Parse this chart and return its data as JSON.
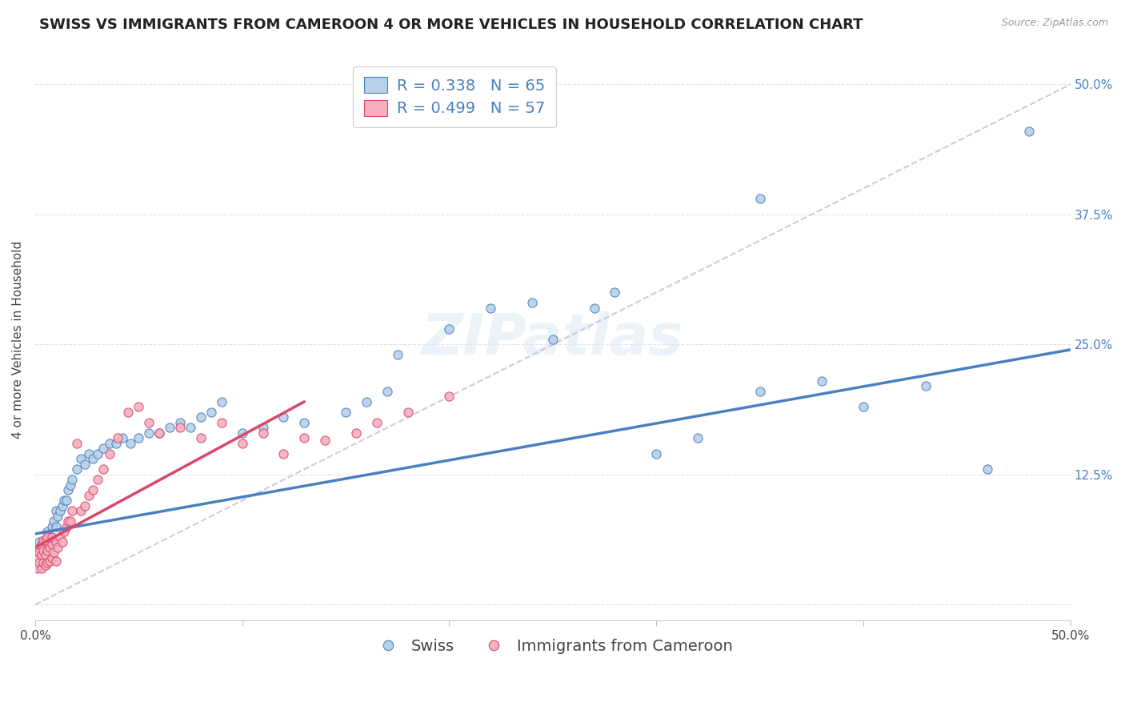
{
  "title": "SWISS VS IMMIGRANTS FROM CAMEROON 4 OR MORE VEHICLES IN HOUSEHOLD CORRELATION CHART",
  "source": "Source: ZipAtlas.com",
  "ylabel": "4 or more Vehicles in Household",
  "swiss_R": 0.338,
  "swiss_N": 65,
  "cam_R": 0.499,
  "cam_N": 57,
  "swiss_color": "#b8d0e8",
  "cam_color": "#f5b0c0",
  "swiss_line_color": "#4a80c0",
  "cam_line_color": "#d84868",
  "diag_color": "#c8cce0",
  "text_color": "#4a80c0",
  "background_color": "#ffffff",
  "xlim": [
    0.0,
    0.5
  ],
  "ylim": [
    -0.015,
    0.525
  ],
  "swiss_x": [
    0.001,
    0.002,
    0.003,
    0.004,
    0.005,
    0.005,
    0.006,
    0.006,
    0.007,
    0.008,
    0.008,
    0.009,
    0.01,
    0.01,
    0.011,
    0.012,
    0.013,
    0.014,
    0.015,
    0.016,
    0.017,
    0.018,
    0.02,
    0.022,
    0.024,
    0.026,
    0.028,
    0.03,
    0.033,
    0.036,
    0.039,
    0.042,
    0.046,
    0.05,
    0.055,
    0.06,
    0.065,
    0.07,
    0.075,
    0.08,
    0.085,
    0.09,
    0.1,
    0.11,
    0.12,
    0.13,
    0.15,
    0.16,
    0.17,
    0.2,
    0.22,
    0.25,
    0.27,
    0.3,
    0.32,
    0.35,
    0.38,
    0.4,
    0.43,
    0.46,
    0.175,
    0.24,
    0.28,
    0.35,
    0.48
  ],
  "swiss_y": [
    0.055,
    0.06,
    0.055,
    0.048,
    0.045,
    0.06,
    0.055,
    0.07,
    0.065,
    0.06,
    0.075,
    0.08,
    0.075,
    0.09,
    0.085,
    0.09,
    0.095,
    0.1,
    0.1,
    0.11,
    0.115,
    0.12,
    0.13,
    0.14,
    0.135,
    0.145,
    0.14,
    0.145,
    0.15,
    0.155,
    0.155,
    0.16,
    0.155,
    0.16,
    0.165,
    0.165,
    0.17,
    0.175,
    0.17,
    0.18,
    0.185,
    0.195,
    0.165,
    0.17,
    0.18,
    0.175,
    0.185,
    0.195,
    0.205,
    0.265,
    0.285,
    0.255,
    0.285,
    0.145,
    0.16,
    0.205,
    0.215,
    0.19,
    0.21,
    0.13,
    0.24,
    0.29,
    0.3,
    0.39,
    0.455
  ],
  "cam_x": [
    0.001,
    0.001,
    0.002,
    0.002,
    0.003,
    0.003,
    0.003,
    0.004,
    0.004,
    0.004,
    0.005,
    0.005,
    0.005,
    0.006,
    0.006,
    0.006,
    0.007,
    0.007,
    0.008,
    0.008,
    0.008,
    0.009,
    0.01,
    0.01,
    0.011,
    0.012,
    0.013,
    0.014,
    0.015,
    0.016,
    0.017,
    0.018,
    0.02,
    0.022,
    0.024,
    0.026,
    0.028,
    0.03,
    0.033,
    0.036,
    0.04,
    0.045,
    0.05,
    0.055,
    0.06,
    0.07,
    0.08,
    0.09,
    0.1,
    0.11,
    0.12,
    0.13,
    0.14,
    0.155,
    0.165,
    0.18,
    0.2
  ],
  "cam_y": [
    0.035,
    0.045,
    0.04,
    0.05,
    0.035,
    0.048,
    0.058,
    0.04,
    0.052,
    0.062,
    0.038,
    0.048,
    0.062,
    0.04,
    0.052,
    0.065,
    0.042,
    0.055,
    0.045,
    0.058,
    0.065,
    0.05,
    0.042,
    0.06,
    0.055,
    0.065,
    0.06,
    0.07,
    0.075,
    0.08,
    0.08,
    0.09,
    0.155,
    0.09,
    0.095,
    0.105,
    0.11,
    0.12,
    0.13,
    0.145,
    0.16,
    0.185,
    0.19,
    0.175,
    0.165,
    0.17,
    0.16,
    0.175,
    0.155,
    0.165,
    0.145,
    0.16,
    0.158,
    0.165,
    0.175,
    0.185,
    0.2
  ],
  "swiss_line_x_start": 0.0,
  "swiss_line_x_end": 0.5,
  "swiss_line_y_start": 0.068,
  "swiss_line_y_end": 0.245,
  "cam_line_x_start": 0.0,
  "cam_line_x_end": 0.13,
  "cam_line_y_start": 0.055,
  "cam_line_y_end": 0.195,
  "title_fontsize": 13,
  "axis_label_fontsize": 11,
  "tick_fontsize": 11,
  "legend_fontsize": 14
}
